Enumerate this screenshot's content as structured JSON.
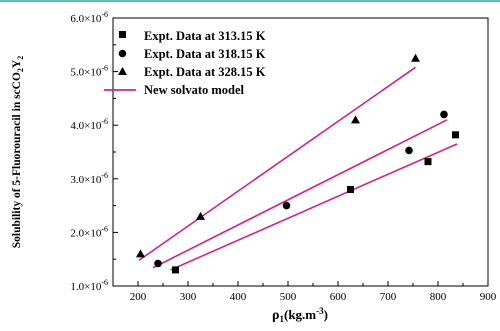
{
  "chart_data": {
    "type": "scatter",
    "xlabel_main": "ρ",
    "xlabel_sub": "1",
    "xlabel_unit": "(kg.m",
    "xlabel_sup": "-3",
    "xlabel_close": ")",
    "ylabel_main": "Solubility of 5-Fluorouracil in scCO",
    "ylabel_sub": "2",
    "ylabel_y": "Y",
    "ylabel_ysub": "2",
    "xlim": [
      150,
      900
    ],
    "ylim": [
      1e-06,
      6e-06
    ],
    "x_ticks": [
      {
        "value": 200,
        "label": "200"
      },
      {
        "value": 300,
        "label": "300"
      },
      {
        "value": 400,
        "label": "400"
      },
      {
        "value": 500,
        "label": "500"
      },
      {
        "value": 600,
        "label": "600"
      },
      {
        "value": 700,
        "label": "700"
      },
      {
        "value": 800,
        "label": "800"
      },
      {
        "value": 900,
        "label": "900"
      }
    ],
    "y_ticks": [
      {
        "value": 1e-06,
        "base": "1.0×10",
        "exp": "-6"
      },
      {
        "value": 2e-06,
        "base": "2.0×10",
        "exp": "-6"
      },
      {
        "value": 3e-06,
        "base": "3.0×10",
        "exp": "-6"
      },
      {
        "value": 4e-06,
        "base": "4.0×10",
        "exp": "-6"
      },
      {
        "value": 5e-06,
        "base": "5.0×10",
        "exp": "-6"
      },
      {
        "value": 6e-06,
        "base": "6.0×10",
        "exp": "-6"
      }
    ],
    "series": [
      {
        "name": "Expt. Data at 313.15 K",
        "marker": "square",
        "points": [
          [
            275,
            1.3e-06
          ],
          [
            625,
            2.8e-06
          ],
          [
            780,
            3.32e-06
          ],
          [
            835,
            3.82e-06
          ]
        ]
      },
      {
        "name": "Expt. Data at 318.15 K",
        "marker": "circle",
        "points": [
          [
            240,
            1.42e-06
          ],
          [
            497,
            2.5e-06
          ],
          [
            742,
            3.53e-06
          ],
          [
            812,
            4.2e-06
          ]
        ]
      },
      {
        "name": "Expt. Data at 328.15 K",
        "marker": "triangle",
        "points": [
          [
            205,
            1.6e-06
          ],
          [
            325,
            2.3e-06
          ],
          [
            635,
            4.1e-06
          ],
          [
            755,
            5.25e-06
          ]
        ]
      }
    ],
    "model_name": "New solvato model",
    "model_lines": [
      {
        "from": [
          265,
          1.3e-06
        ],
        "to": [
          838,
          3.65e-06
        ]
      },
      {
        "from": [
          230,
          1.34e-06
        ],
        "to": [
          818,
          4.1e-06
        ]
      },
      {
        "from": [
          202,
          1.48e-06
        ],
        "to": [
          755,
          5.08e-06
        ]
      }
    ],
    "colors": {
      "model": "#d6247f",
      "marker": "#000000",
      "axis": "#000000",
      "frame_top": "#2aa5a0"
    },
    "legend_position": "top-left"
  }
}
